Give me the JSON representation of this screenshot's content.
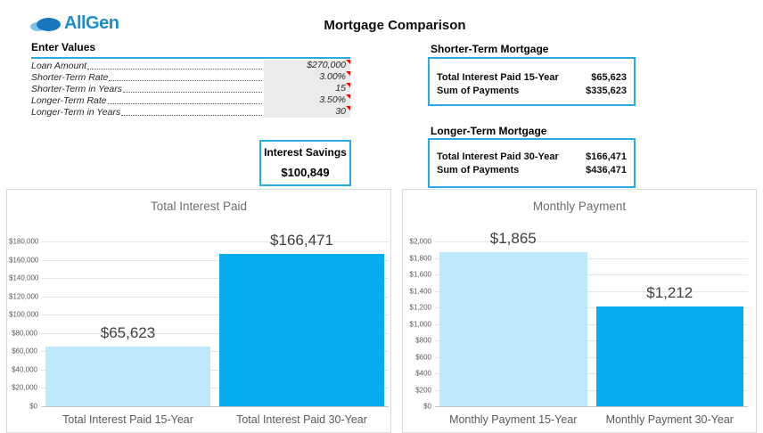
{
  "header": {
    "logo_text": "AllGen",
    "title": "Mortgage Comparison"
  },
  "enter_values": {
    "title": "Enter Values",
    "rows": [
      {
        "label": "Loan Amount",
        "value": "$270,000"
      },
      {
        "label": "Shorter-Term Rate",
        "value": "3.00%"
      },
      {
        "label": "Shorter-Term in Years",
        "value": "15"
      },
      {
        "label": "Longer-Term Rate",
        "value": "3.50%"
      },
      {
        "label": "Longer-Term in Years",
        "value": "30"
      }
    ]
  },
  "shorter_term": {
    "title": "Shorter-Term Mortgage",
    "rows": [
      {
        "label": "Total Interest Paid 15-Year",
        "value": "$65,623"
      },
      {
        "label": "Sum of Payments",
        "value": "$335,623"
      }
    ]
  },
  "longer_term": {
    "title": "Longer-Term Mortgage",
    "rows": [
      {
        "label": "Total Interest Paid 30-Year",
        "value": "$166,471"
      },
      {
        "label": "Sum of Payments",
        "value": "$436,471"
      }
    ]
  },
  "interest_savings": {
    "label": "Interest Savings",
    "value": "$100,849"
  },
  "colors": {
    "accent_border": "#29ABE2",
    "bar_light": "#BDE9FC",
    "bar_dark": "#05ADEE",
    "logo_text_blue": "#1E8CCB",
    "logo_cloud_dark": "#1878BE",
    "logo_cloud_light": "#7EC3E8",
    "comment_marker_red": "#FF0000",
    "table_input_bg": "#EBEBEB"
  },
  "chart_data": [
    {
      "type": "bar",
      "title": "Total Interest Paid",
      "categories": [
        "Total Interest Paid 15-Year",
        "Total Interest Paid 30-Year"
      ],
      "values": [
        65623,
        166471
      ],
      "value_labels": [
        "$65,623",
        "$166,471"
      ],
      "bar_colors": [
        "#BDE9FC",
        "#05ADEE"
      ],
      "ylim": [
        0,
        180000
      ],
      "ytick_step": 20000,
      "ytick_labels": [
        "$0",
        "$20,000",
        "$40,000",
        "$60,000",
        "$80,000",
        "$100,000",
        "$120,000",
        "$140,000",
        "$160,000",
        "$180,000"
      ],
      "grid": true,
      "legend": false,
      "xlabel": "",
      "ylabel": ""
    },
    {
      "type": "bar",
      "title": "Monthly Payment",
      "categories": [
        "Monthly Payment 15-Year",
        "Monthly Payment 30-Year"
      ],
      "values": [
        1865,
        1212
      ],
      "value_labels": [
        "$1,865",
        "$1,212"
      ],
      "bar_colors": [
        "#BDE9FC",
        "#05ADEE"
      ],
      "ylim": [
        0,
        2000
      ],
      "ytick_step": 200,
      "ytick_labels": [
        "$0",
        "$200",
        "$400",
        "$600",
        "$800",
        "$1,000",
        "$1,200",
        "$1,400",
        "$1,600",
        "$1,800",
        "$2,000"
      ],
      "grid": true,
      "legend": false,
      "xlabel": "",
      "ylabel": ""
    }
  ]
}
